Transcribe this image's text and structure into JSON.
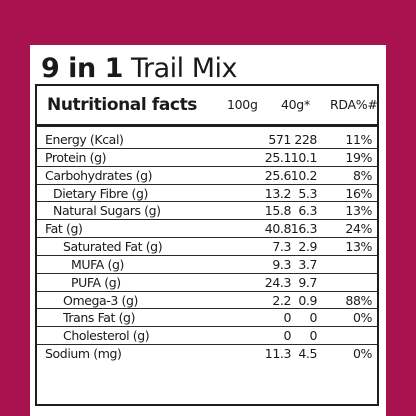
{
  "title": {
    "bold": "9 in 1",
    "regular": "Trail Mix"
  },
  "table": {
    "header": {
      "label": "Nutritional facts",
      "col1": "100g",
      "col2": "40g*",
      "col3": "RDA%#"
    },
    "rows": [
      {
        "name": "Energy (Kcal)",
        "v100": "571",
        "v40": "228",
        "rda": "11%",
        "indent": 0
      },
      {
        "name": "Protein (g)",
        "v100": "25.1",
        "v40": "10.1",
        "rda": "19%",
        "indent": 0
      },
      {
        "name": "Carbohydrates (g)",
        "v100": "25.6",
        "v40": "10.2",
        "rda": "8%",
        "indent": 0
      },
      {
        "name": "Dietary Fibre (g)",
        "v100": "13.2",
        "v40": "5.3",
        "rda": "16%",
        "indent": 1
      },
      {
        "name": "Natural Sugars (g)",
        "v100": "15.8",
        "v40": "6.3",
        "rda": "13%",
        "indent": 1
      },
      {
        "name": "Fat (g)",
        "v100": "40.8",
        "v40": "16.3",
        "rda": "24%",
        "indent": 0
      },
      {
        "name": "Saturated Fat (g)",
        "v100": "7.3",
        "v40": "2.9",
        "rda": "13%",
        "indent": 2
      },
      {
        "name": "MUFA (g)",
        "v100": "9.3",
        "v40": "3.7",
        "rda": "",
        "indent": 3
      },
      {
        "name": "PUFA (g)",
        "v100": "24.3",
        "v40": "9.7",
        "rda": "",
        "indent": 3
      },
      {
        "name": "Omega-3 (g)",
        "v100": "2.2",
        "v40": "0.9",
        "rda": "88%",
        "indent": 2
      },
      {
        "name": "Trans Fat (g)",
        "v100": "0",
        "v40": "0",
        "rda": "0%",
        "indent": 2
      },
      {
        "name": "Cholesterol (g)",
        "v100": "0",
        "v40": "0",
        "rda": "",
        "indent": 2
      },
      {
        "name": "Sodium (mg)",
        "v100": "11.3",
        "v40": "4.5",
        "rda": "0%",
        "indent": 0
      }
    ]
  }
}
